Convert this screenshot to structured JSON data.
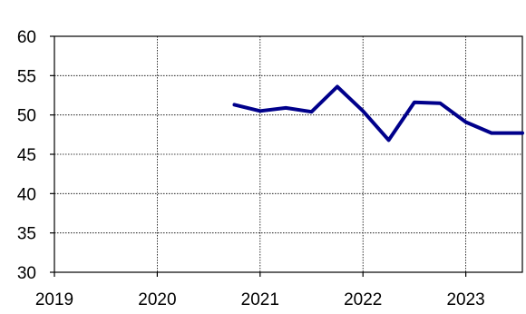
{
  "chart_data": {
    "type": "line",
    "title": "",
    "xlabel": "",
    "ylabel": "",
    "xlim": [
      2019,
      2023.55
    ],
    "ylim": [
      30,
      60
    ],
    "x_ticks": [
      2019,
      2020,
      2021,
      2022,
      2023
    ],
    "x_tick_labels": [
      "2019",
      "2020",
      "2021",
      "2022",
      "2023"
    ],
    "y_ticks": [
      30,
      35,
      40,
      45,
      50,
      55,
      60
    ],
    "y_tick_labels": [
      "30",
      "35",
      "40",
      "45",
      "50",
      "55",
      "60"
    ],
    "grid": true,
    "colors": {
      "series": "#00008B",
      "axis": "#000000",
      "background": "#ffffff"
    },
    "series": [
      {
        "x": [
          2020.75,
          2021.0,
          2021.25,
          2021.5,
          2021.75,
          2022.0,
          2022.25,
          2022.5,
          2022.75,
          2023.0,
          2023.25,
          2023.55
        ],
        "values": [
          51.3,
          50.5,
          50.9,
          50.4,
          53.6,
          50.5,
          46.8,
          51.6,
          51.5,
          49.1,
          47.7,
          47.7
        ]
      }
    ]
  }
}
